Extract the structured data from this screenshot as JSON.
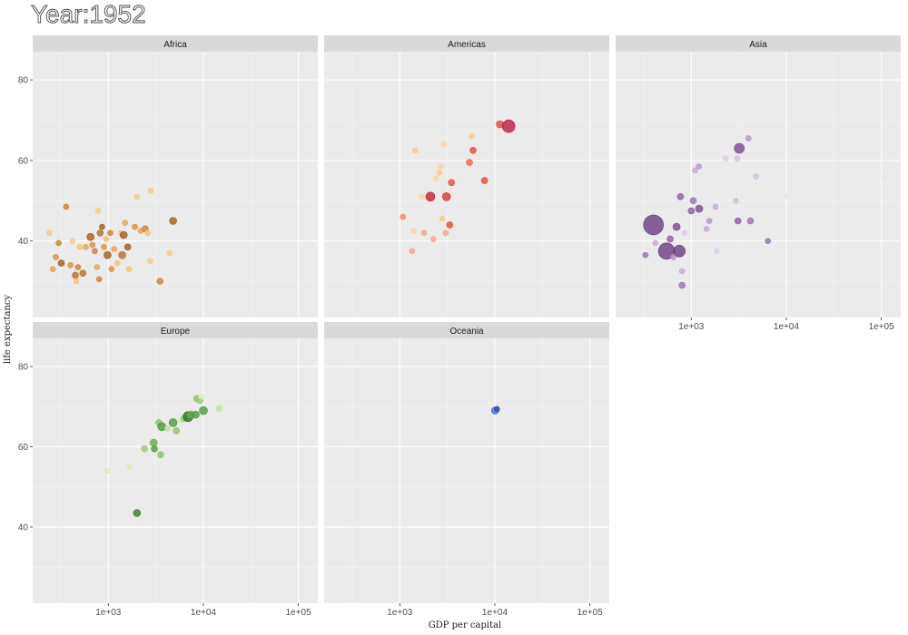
{
  "title": "Year:1952",
  "chart_data": {
    "type": "scatter",
    "xlabel": "GDP per capital",
    "ylabel": "life expectancy",
    "x_scale": "log10",
    "xlim": [
      160,
      160000
    ],
    "ylim": [
      21,
      87
    ],
    "x_ticks": [
      {
        "value": 1000,
        "label": "1e+03"
      },
      {
        "value": 10000,
        "label": "1e+04"
      },
      {
        "value": 100000,
        "label": "1e+05"
      }
    ],
    "y_ticks": [
      {
        "value": 40,
        "label": "40"
      },
      {
        "value": 60,
        "label": "60"
      },
      {
        "value": 80,
        "label": "80"
      }
    ],
    "panels": [
      {
        "name": "Africa",
        "points": [
          {
            "x": 240,
            "y": 42,
            "size": 3,
            "color": "#f7c788"
          },
          {
            "x": 260,
            "y": 33,
            "size": 3,
            "color": "#e5a25a"
          },
          {
            "x": 280,
            "y": 36,
            "size": 3,
            "color": "#d8903f"
          },
          {
            "x": 300,
            "y": 39.5,
            "size": 3,
            "color": "#c88034"
          },
          {
            "x": 320,
            "y": 34.5,
            "size": 3.5,
            "color": "#9e5d1c"
          },
          {
            "x": 360,
            "y": 48.5,
            "size": 3,
            "color": "#c88034"
          },
          {
            "x": 400,
            "y": 34,
            "size": 3,
            "color": "#d8903f"
          },
          {
            "x": 420,
            "y": 40,
            "size": 3,
            "color": "#f7c788"
          },
          {
            "x": 450,
            "y": 31.5,
            "size": 3.5,
            "color": "#b3702a"
          },
          {
            "x": 460,
            "y": 30,
            "size": 3,
            "color": "#f5c07a"
          },
          {
            "x": 480,
            "y": 33.5,
            "size": 3,
            "color": "#c88034"
          },
          {
            "x": 500,
            "y": 38.5,
            "size": 3,
            "color": "#f5c07a"
          },
          {
            "x": 540,
            "y": 32,
            "size": 3.5,
            "color": "#b3702a"
          },
          {
            "x": 580,
            "y": 38.5,
            "size": 3,
            "color": "#e5a25a"
          },
          {
            "x": 650,
            "y": 41,
            "size": 4,
            "color": "#9e5d1c"
          },
          {
            "x": 680,
            "y": 39,
            "size": 3,
            "color": "#d8903f"
          },
          {
            "x": 720,
            "y": 37.5,
            "size": 3,
            "color": "#c88034"
          },
          {
            "x": 760,
            "y": 33.5,
            "size": 3,
            "color": "#e5a25a"
          },
          {
            "x": 780,
            "y": 47.5,
            "size": 3,
            "color": "#f7c788"
          },
          {
            "x": 800,
            "y": 30.5,
            "size": 3,
            "color": "#c88034"
          },
          {
            "x": 820,
            "y": 42,
            "size": 3.5,
            "color": "#b3702a"
          },
          {
            "x": 860,
            "y": 43.5,
            "size": 3,
            "color": "#9e5d1c"
          },
          {
            "x": 900,
            "y": 38.5,
            "size": 3,
            "color": "#d8903f"
          },
          {
            "x": 950,
            "y": 40.5,
            "size": 3,
            "color": "#f5c07a"
          },
          {
            "x": 980,
            "y": 36.5,
            "size": 4,
            "color": "#9e5d1c"
          },
          {
            "x": 1050,
            "y": 42,
            "size": 3,
            "color": "#c88034"
          },
          {
            "x": 1080,
            "y": 33,
            "size": 3,
            "color": "#d8903f"
          },
          {
            "x": 1150,
            "y": 38,
            "size": 3,
            "color": "#e5a25a"
          },
          {
            "x": 1250,
            "y": 34.5,
            "size": 3,
            "color": "#f5c07a"
          },
          {
            "x": 1350,
            "y": 42,
            "size": 3,
            "color": "#f7c788"
          },
          {
            "x": 1400,
            "y": 36.5,
            "size": 4,
            "color": "#b3702a"
          },
          {
            "x": 1450,
            "y": 41.5,
            "size": 4,
            "color": "#9e5d1c"
          },
          {
            "x": 1500,
            "y": 44.5,
            "size": 3,
            "color": "#e5a25a"
          },
          {
            "x": 1600,
            "y": 38.5,
            "size": 3.5,
            "color": "#9e5d1c"
          },
          {
            "x": 1650,
            "y": 33,
            "size": 3,
            "color": "#f5c07a"
          },
          {
            "x": 1900,
            "y": 43.5,
            "size": 3,
            "color": "#d8903f"
          },
          {
            "x": 2000,
            "y": 51,
            "size": 3,
            "color": "#f7c788"
          },
          {
            "x": 2200,
            "y": 42.5,
            "size": 3,
            "color": "#e5a25a"
          },
          {
            "x": 2450,
            "y": 43,
            "size": 3.5,
            "color": "#c88034"
          },
          {
            "x": 2600,
            "y": 42,
            "size": 3,
            "color": "#f5c07a"
          },
          {
            "x": 2750,
            "y": 35,
            "size": 3,
            "color": "#f7c788"
          },
          {
            "x": 2800,
            "y": 52.5,
            "size": 3,
            "color": "#f7c788"
          },
          {
            "x": 3500,
            "y": 30,
            "size": 3.5,
            "color": "#c88034"
          },
          {
            "x": 4400,
            "y": 37,
            "size": 3,
            "color": "#f7c788"
          },
          {
            "x": 4800,
            "y": 45,
            "size": 4,
            "color": "#9e5d1c"
          }
        ]
      },
      {
        "name": "Americas",
        "points": [
          {
            "x": 1080,
            "y": 46,
            "size": 3,
            "color": "#ef8a62"
          },
          {
            "x": 1350,
            "y": 37.5,
            "size": 3,
            "color": "#f4a582"
          },
          {
            "x": 1400,
            "y": 42.5,
            "size": 3,
            "color": "#fbd3a0"
          },
          {
            "x": 1450,
            "y": 62.5,
            "size": 3,
            "color": "#fdc98a"
          },
          {
            "x": 1700,
            "y": 51,
            "size": 3,
            "color": "#fbd3a0"
          },
          {
            "x": 1800,
            "y": 42,
            "size": 3,
            "color": "#f4a582"
          },
          {
            "x": 2100,
            "y": 51,
            "size": 5,
            "color": "#c41e3a"
          },
          {
            "x": 2250,
            "y": 40.5,
            "size": 3,
            "color": "#f4a582"
          },
          {
            "x": 2400,
            "y": 55.5,
            "size": 3,
            "color": "#fbd3a0"
          },
          {
            "x": 2600,
            "y": 57,
            "size": 3,
            "color": "#fdc98a"
          },
          {
            "x": 2700,
            "y": 58.5,
            "size": 3,
            "color": "#fbd3a0"
          },
          {
            "x": 2800,
            "y": 45.5,
            "size": 3,
            "color": "#fdc98a"
          },
          {
            "x": 2900,
            "y": 64,
            "size": 3,
            "color": "#fbd3a0"
          },
          {
            "x": 3050,
            "y": 42,
            "size": 3,
            "color": "#f4a582"
          },
          {
            "x": 3100,
            "y": 51,
            "size": 4.5,
            "color": "#d6393a"
          },
          {
            "x": 3350,
            "y": 44,
            "size": 3.5,
            "color": "#e64a3c"
          },
          {
            "x": 3500,
            "y": 54.5,
            "size": 3.5,
            "color": "#e64a3c"
          },
          {
            "x": 5400,
            "y": 59.5,
            "size": 3.5,
            "color": "#ef6548"
          },
          {
            "x": 5700,
            "y": 66,
            "size": 3,
            "color": "#fdc98a"
          },
          {
            "x": 5900,
            "y": 62.5,
            "size": 3.5,
            "color": "#e64a3c"
          },
          {
            "x": 7800,
            "y": 55,
            "size": 3.5,
            "color": "#e64a3c"
          },
          {
            "x": 11300,
            "y": 69,
            "size": 4,
            "color": "#e64a3c"
          },
          {
            "x": 13990,
            "y": 68.5,
            "size": 7,
            "color": "#b81d3e"
          }
        ]
      },
      {
        "name": "Asia",
        "points": [
          {
            "x": 330,
            "y": 36.5,
            "size": 3,
            "color": "#9a6fb0"
          },
          {
            "x": 400,
            "y": 44,
            "size": 11,
            "color": "#6a3d7e"
          },
          {
            "x": 420,
            "y": 39.5,
            "size": 3,
            "color": "#c8a8d6"
          },
          {
            "x": 550,
            "y": 37.5,
            "size": 9,
            "color": "#6a3d7e"
          },
          {
            "x": 600,
            "y": 40.5,
            "size": 3.5,
            "color": "#8e5ba6"
          },
          {
            "x": 650,
            "y": 36,
            "size": 3,
            "color": "#b894c8"
          },
          {
            "x": 700,
            "y": 43.5,
            "size": 4,
            "color": "#7a4a92"
          },
          {
            "x": 750,
            "y": 37.5,
            "size": 6.5,
            "color": "#6a3d7e"
          },
          {
            "x": 770,
            "y": 51,
            "size": 3.5,
            "color": "#8e5ba6"
          },
          {
            "x": 800,
            "y": 32.5,
            "size": 3,
            "color": "#c8a8d6"
          },
          {
            "x": 800,
            "y": 29,
            "size": 3.5,
            "color": "#9a6fb0"
          },
          {
            "x": 850,
            "y": 42,
            "size": 3,
            "color": "#e0cbe8"
          },
          {
            "x": 1000,
            "y": 47.5,
            "size": 3.5,
            "color": "#8e5ba6"
          },
          {
            "x": 1050,
            "y": 50,
            "size": 3.5,
            "color": "#9a6fb0"
          },
          {
            "x": 1100,
            "y": 57.5,
            "size": 3,
            "color": "#c8a8d6"
          },
          {
            "x": 1200,
            "y": 58.5,
            "size": 3,
            "color": "#b894c8"
          },
          {
            "x": 1210,
            "y": 48,
            "size": 4,
            "color": "#7a4a92"
          },
          {
            "x": 1450,
            "y": 43,
            "size": 3,
            "color": "#c8a8d6"
          },
          {
            "x": 1550,
            "y": 45,
            "size": 3,
            "color": "#b894c8"
          },
          {
            "x": 1800,
            "y": 48.5,
            "size": 3,
            "color": "#c8a8d6"
          },
          {
            "x": 1850,
            "y": 37.5,
            "size": 3,
            "color": "#e0cbe8"
          },
          {
            "x": 2300,
            "y": 60.5,
            "size": 3,
            "color": "#e0cbe8"
          },
          {
            "x": 2950,
            "y": 50,
            "size": 3,
            "color": "#d4bde0"
          },
          {
            "x": 3100,
            "y": 45,
            "size": 3.5,
            "color": "#8e5ba6"
          },
          {
            "x": 3200,
            "y": 63,
            "size": 5.5,
            "color": "#7a4a92"
          },
          {
            "x": 3050,
            "y": 60.5,
            "size": 3,
            "color": "#d4bde0"
          },
          {
            "x": 4000,
            "y": 65.5,
            "size": 3,
            "color": "#b894c8"
          },
          {
            "x": 4200,
            "y": 45,
            "size": 3.5,
            "color": "#9a6fb0"
          },
          {
            "x": 4800,
            "y": 56,
            "size": 3,
            "color": "#d4bde0"
          },
          {
            "x": 6400,
            "y": 40,
            "size": 3,
            "color": "#9a6fb0"
          },
          {
            "x": 9900,
            "y": 51,
            "size": 3,
            "color": "#ede2f2"
          },
          {
            "x": 108000,
            "y": 55.5,
            "size": 3,
            "color": "#ede2f2"
          }
        ]
      },
      {
        "name": "Europe",
        "points": [
          {
            "x": 970,
            "y": 54,
            "size": 3,
            "color": "#d9efb8"
          },
          {
            "x": 1650,
            "y": 55,
            "size": 3,
            "color": "#d9efb8"
          },
          {
            "x": 2000,
            "y": 43.5,
            "size": 4,
            "color": "#3c7a32"
          },
          {
            "x": 2400,
            "y": 59.5,
            "size": 3.5,
            "color": "#98cc72"
          },
          {
            "x": 3000,
            "y": 61,
            "size": 4,
            "color": "#6aa84f"
          },
          {
            "x": 3050,
            "y": 59.5,
            "size": 3.5,
            "color": "#4d9a3a"
          },
          {
            "x": 3400,
            "y": 66,
            "size": 3.5,
            "color": "#8ac266"
          },
          {
            "x": 3550,
            "y": 58,
            "size": 3.5,
            "color": "#8ac266"
          },
          {
            "x": 3650,
            "y": 65,
            "size": 4.5,
            "color": "#4d9a3a"
          },
          {
            "x": 4200,
            "y": 64.5,
            "size": 3,
            "color": "#bfe29a"
          },
          {
            "x": 4800,
            "y": 66,
            "size": 4.5,
            "color": "#4d9a3a"
          },
          {
            "x": 5200,
            "y": 64,
            "size": 3.5,
            "color": "#8ac266"
          },
          {
            "x": 5800,
            "y": 66.5,
            "size": 3,
            "color": "#d9efb8"
          },
          {
            "x": 6200,
            "y": 67,
            "size": 3.5,
            "color": "#98cc72"
          },
          {
            "x": 6900,
            "y": 67.5,
            "size": 5.5,
            "color": "#2c6e24"
          },
          {
            "x": 7400,
            "y": 68,
            "size": 4,
            "color": "#6aa84f"
          },
          {
            "x": 8300,
            "y": 68,
            "size": 4,
            "color": "#4d9a3a"
          },
          {
            "x": 8500,
            "y": 72,
            "size": 3.5,
            "color": "#8ac266"
          },
          {
            "x": 9200,
            "y": 71.5,
            "size": 3.5,
            "color": "#98cc72"
          },
          {
            "x": 9500,
            "y": 72.5,
            "size": 3,
            "color": "#d9efb8"
          },
          {
            "x": 10000,
            "y": 69,
            "size": 4.5,
            "color": "#4d9a3a"
          },
          {
            "x": 14700,
            "y": 69.5,
            "size": 3.5,
            "color": "#bfe29a"
          }
        ]
      },
      {
        "name": "Oceania",
        "points": [
          {
            "x": 10040,
            "y": 69,
            "size": 4,
            "color": "#4a6fd0"
          },
          {
            "x": 10560,
            "y": 69.4,
            "size": 3,
            "color": "#2c4aa8"
          }
        ]
      }
    ]
  }
}
